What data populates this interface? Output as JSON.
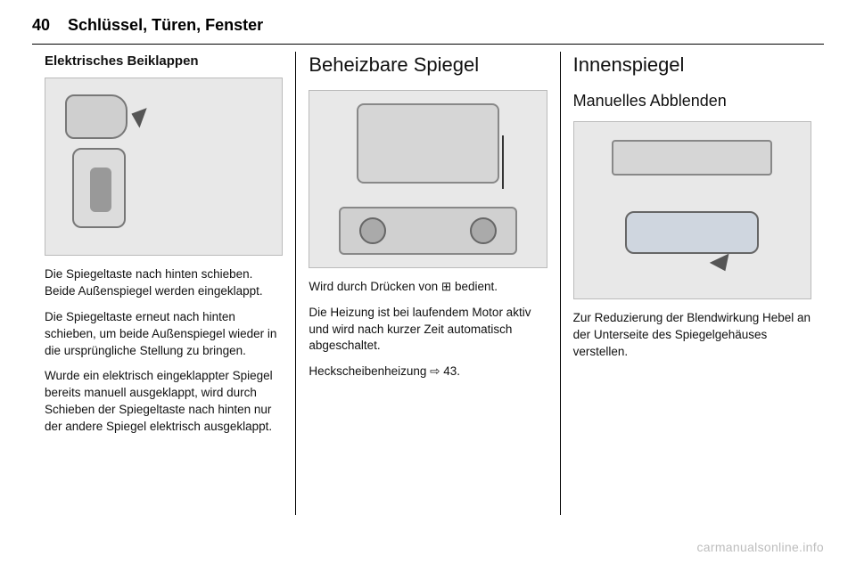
{
  "page_number": "40",
  "chapter_title": "Schlüssel, Türen, Fenster",
  "col1": {
    "subhead": "Elektrisches Beiklappen",
    "p1": "Die Spiegeltaste nach hinten schieben. Beide Außenspiegel werden eingeklappt.",
    "p2": "Die Spiegeltaste erneut nach hinten schieben, um beide Außenspiegel wieder in die ursprüngliche Stellung zu bringen.",
    "p3": "Wurde ein elektrisch eingeklappter Spiegel bereits manuell ausgeklappt, wird durch Schieben der Spiegeltaste nach hinten nur der andere Spiegel elektrisch ausgeklappt."
  },
  "col2": {
    "sec_title": "Beheizbare Spiegel",
    "p1": "Wird durch Drücken von ⊞ bedient.",
    "p2": "Die Heizung ist bei laufendem Motor aktiv und wird nach kurzer Zeit automatisch abgeschaltet.",
    "p3": "Heckscheibenheizung ⇨ 43."
  },
  "col3": {
    "sec_title": "Innenspiegel",
    "sec_sub": "Manuelles Abblenden",
    "p1": "Zur Reduzierung der Blendwirkung Hebel an der Unterseite des Spiegelgehäuses verstellen."
  },
  "watermark": "carmanualsonline.info"
}
